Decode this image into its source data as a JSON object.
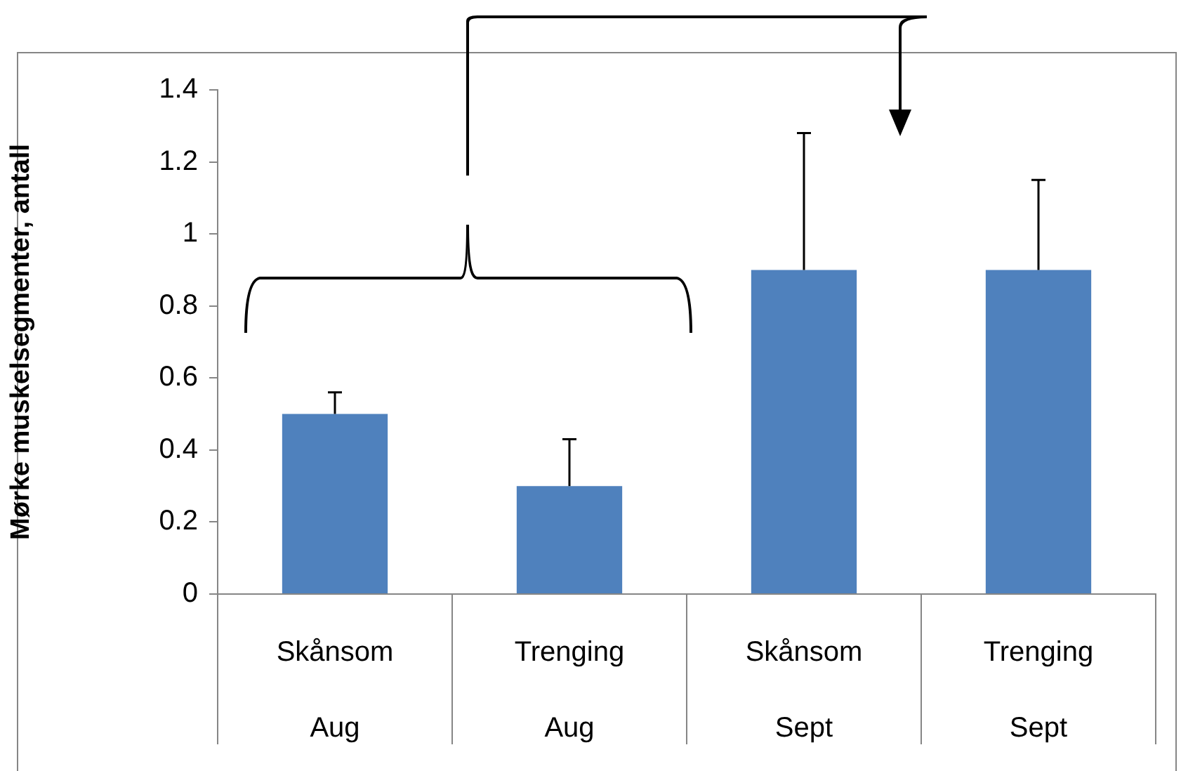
{
  "chart_data": {
    "type": "bar",
    "ylabel": "Mørke muskelsegmenter, antall",
    "categories": [
      "Skånsom\nAug",
      "Trenging\nAug",
      "Skånsom\nSept",
      "Trenging\nSept"
    ],
    "values": [
      0.5,
      0.3,
      0.9,
      0.9
    ],
    "color": "#4f81bd",
    "errors": [
      [
        0.5,
        0.56
      ],
      [
        0.3,
        0.43
      ],
      [
        0.9,
        1.28
      ],
      [
        0.9,
        1.15
      ]
    ],
    "ylim": [
      0,
      1.4
    ],
    "yticks": [
      0,
      0.2,
      0.4,
      0.6,
      0.8,
      1,
      1.2,
      1.4
    ],
    "grid": false,
    "legend": false
  }
}
